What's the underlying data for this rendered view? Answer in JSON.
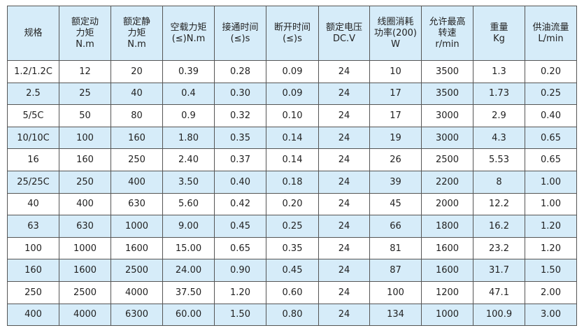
{
  "colors": {
    "header_bg": "#d6ecf9",
    "alt_row_bg": "#d6ecf9",
    "border": "#555555"
  },
  "headers": [
    "规格",
    "额定动\n力矩\nN.m",
    "额定静\n力矩\nN.m",
    "空载力矩\n(≤)N.m",
    "接通时间\n(≤)s",
    "断开时间\n(≤)s",
    "额定电压\nDC.V",
    "线圈消耗\n功率(200)\nW",
    "允许最高\n转速\nr/min",
    "重量\nKg",
    "供油流量\nL/min"
  ],
  "rows": [
    [
      "1.2/1.2C",
      "12",
      "20",
      "0.39",
      "0.28",
      "0.09",
      "24",
      "10",
      "3500",
      "1.3",
      "0.20"
    ],
    [
      "2.5",
      "25",
      "40",
      "0.4",
      "0.30",
      "0.09",
      "24",
      "17",
      "3500",
      "1.73",
      "0.25"
    ],
    [
      "5/5C",
      "50",
      "80",
      "0.9",
      "0.32",
      "0.10",
      "24",
      "17",
      "3000",
      "2.9",
      "0.40"
    ],
    [
      "10/10C",
      "100",
      "160",
      "1.80",
      "0.35",
      "0.14",
      "24",
      "19",
      "3000",
      "4.3",
      "0.65"
    ],
    [
      "16",
      "160",
      "250",
      "2.40",
      "0.37",
      "0.14",
      "24",
      "26",
      "2500",
      "5.53",
      "0.65"
    ],
    [
      "25/25C",
      "250",
      "400",
      "3.50",
      "0.40",
      "0.18",
      "24",
      "39",
      "2200",
      "8",
      "1.00"
    ],
    [
      "40",
      "400",
      "630",
      "5.60",
      "0.42",
      "0.20",
      "24",
      "45",
      "2000",
      "12.2",
      "1.00"
    ],
    [
      "63",
      "630",
      "1000",
      "9.00",
      "0.45",
      "0.25",
      "24",
      "66",
      "1800",
      "16.2",
      "1.20"
    ],
    [
      "100",
      "1000",
      "1600",
      "15.00",
      "0.65",
      "0.35",
      "24",
      "81",
      "1600",
      "23.2",
      "1.20"
    ],
    [
      "160",
      "1600",
      "2500",
      "24.00",
      "0.90",
      "0.45",
      "24",
      "87",
      "1600",
      "31.7",
      "1.50"
    ],
    [
      "250",
      "2500",
      "4000",
      "37.50",
      "1.20",
      "0.60",
      "24",
      "100",
      "1200",
      "47.1",
      "2.00"
    ],
    [
      "400",
      "4000",
      "6300",
      "60.00",
      "1.50",
      "0.80",
      "24",
      "134",
      "1000",
      "100.9",
      "3.00"
    ]
  ]
}
